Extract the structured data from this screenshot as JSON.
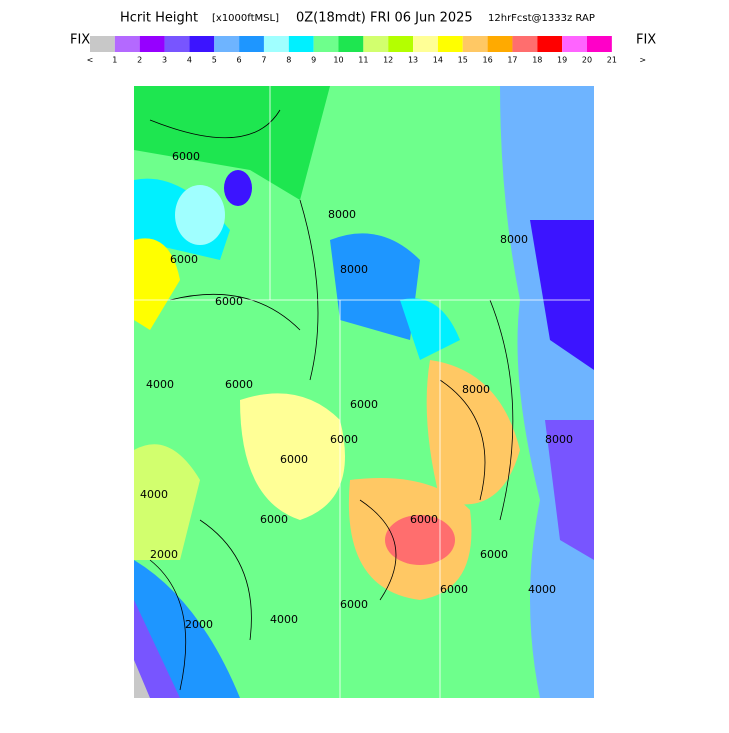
{
  "header": {
    "title_main": "Hcrit Height",
    "title_units": "[x1000ftMSL]",
    "title_time": "0Z(18mdt) FRI 06 Jun 2025",
    "title_model": "12hrFcst@1333z RAP"
  },
  "colorbar": {
    "left": "FIX",
    "right": "FIX",
    "labels": [
      "<",
      "1",
      "2",
      "3",
      "4",
      "5",
      "6",
      "7",
      "8",
      "9",
      "10",
      "11",
      "12",
      "13",
      "14",
      "15",
      "16",
      "17",
      "18",
      "19",
      "20",
      "21",
      ">"
    ],
    "colors": [
      "#c8c8c8",
      "#b469ff",
      "#9600ff",
      "#7855ff",
      "#3c14ff",
      "#6eb4ff",
      "#1e96ff",
      "#a0ffff",
      "#00f0ff",
      "#6eff8c",
      "#1ee650",
      "#d2ff6e",
      "#b4ff00",
      "#ffff96",
      "#ffff00",
      "#ffc864",
      "#ffaa00",
      "#ff6e6e",
      "#ff0000",
      "#ff64ff",
      "#ff00c8"
    ]
  },
  "contour_labels": [
    "6000",
    "6000",
    "8000",
    "8000",
    "8000",
    "6000",
    "6000",
    "4000",
    "6000",
    "6000",
    "8000",
    "6000",
    "6000",
    "6000",
    "8000",
    "2000",
    "4000",
    "2000",
    "4000",
    "6000",
    "6000",
    "4000",
    "6000"
  ]
}
